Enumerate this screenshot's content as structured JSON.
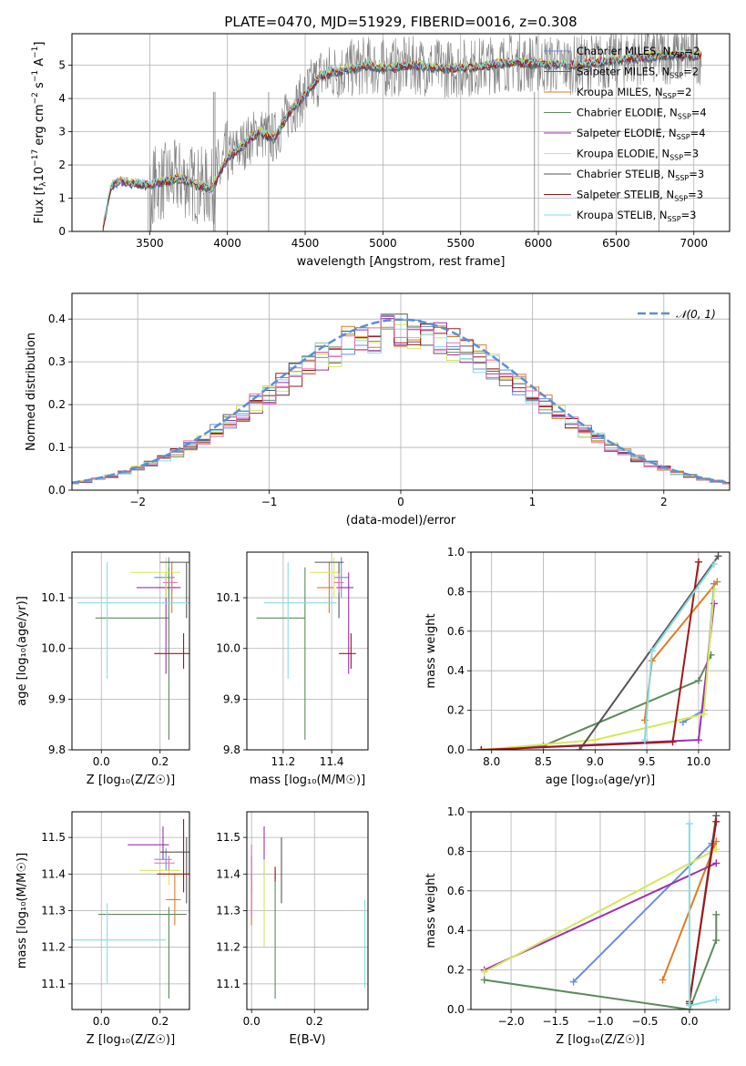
{
  "title": "PLATE=0470, MJD=51929, FIBERID=0016, z=0.308",
  "colors": {
    "Chabrier MILES": "#6a8fd6",
    "Salpeter MILES": "#2b6fb5",
    "Kroupa MILES": "#e07b24",
    "Chabrier ELODIE": "#5e8a5e",
    "Salpeter ELODIE": "#9b30b0",
    "Kroupa ELODIE": "#d6e85a",
    "Chabrier STELIB": "#555555",
    "Salpeter STELIB": "#a01818",
    "Kroupa STELIB": "#86dce0",
    "extra": "#e070b0",
    "data": "#808080",
    "normal": "#5b8fd6"
  },
  "chart_data": [
    {
      "id": "spectrum",
      "type": "line",
      "xlabel": "wavelength [Angstrom, rest frame]",
      "ylabel": "Flux [f",
      "xlim": [
        3000,
        7230
      ],
      "ylim": [
        0,
        5.95
      ],
      "xticks": [
        "3500",
        "4000",
        "4500",
        "5000",
        "5500",
        "6000",
        "6500",
        "7000"
      ],
      "yticks": [
        "0",
        "1",
        "2",
        "3",
        "4",
        "5"
      ],
      "legend": [
        {
          "name": "Chabrier MILES",
          "sub": "SSP",
          "suffix": "=2"
        },
        {
          "name": "Salpeter MILES",
          "sub": "SSP",
          "suffix": "=2"
        },
        {
          "name": "Kroupa MILES",
          "sub": "SSP",
          "suffix": "=2"
        },
        {
          "name": "Chabrier ELODIE",
          "sub": "SSP",
          "suffix": "=4"
        },
        {
          "name": "Salpeter ELODIE",
          "sub": "SSP",
          "suffix": "=4"
        },
        {
          "name": "Kroupa ELODIE",
          "sub": "SSP",
          "suffix": "=3"
        },
        {
          "name": "Chabrier STELIB",
          "sub": "SSP",
          "suffix": "=3"
        },
        {
          "name": "Salpeter STELIB",
          "sub": "SSP",
          "suffix": "=3"
        },
        {
          "name": "Kroupa STELIB",
          "sub": "SSP",
          "suffix": "=3"
        }
      ],
      "model_x": [
        3200,
        3250,
        3300,
        3400,
        3500,
        3600,
        3700,
        3800,
        3900,
        4000,
        4100,
        4200,
        4300,
        4400,
        4500,
        4600,
        4700,
        4800,
        4900,
        5000,
        5200,
        5400,
        5600,
        5800,
        6000,
        6200,
        6400,
        6600,
        6800,
        7000
      ],
      "model_y": [
        0.1,
        1.35,
        1.5,
        1.45,
        1.4,
        1.5,
        1.6,
        1.4,
        1.3,
        2.2,
        2.6,
        3.0,
        2.8,
        3.6,
        4.1,
        4.7,
        4.8,
        4.9,
        5.0,
        4.9,
        5.0,
        4.9,
        4.95,
        5.1,
        5.05,
        5.0,
        5.1,
        5.2,
        5.3,
        5.3
      ]
    },
    {
      "id": "residuals",
      "type": "histogram",
      "xlabel": "(data-model)/error",
      "ylabel": "Normed distribution",
      "xlim": [
        -2.5,
        2.5
      ],
      "ylim": [
        0,
        0.46
      ],
      "xticks": [
        "−2",
        "−1",
        "0",
        "1",
        "2"
      ],
      "yticks": [
        "0.0",
        "0.1",
        "0.2",
        "0.3",
        "0.4"
      ],
      "legend": "𝒩(0, 1)"
    },
    {
      "id": "age_vs_Z",
      "type": "scatter",
      "xlabel": "Z [log₁₀(Z/Z☉)]",
      "ylabel": "age  [log₁₀(age/yr)]",
      "xlim": [
        -0.1,
        0.3
      ],
      "ylim": [
        9.8,
        10.19
      ],
      "xticks": [
        "0.0",
        "0.2"
      ],
      "yticks": [
        "9.8",
        "9.9",
        "10.0",
        "10.1"
      ],
      "points": [
        {
          "s": "Chabrier MILES",
          "x": 0.23,
          "y": 10.14,
          "xe": [
            0.05,
            0.02
          ],
          "ye": [
            0.04,
            0.04
          ]
        },
        {
          "s": "Kroupa MILES",
          "x": 0.24,
          "y": 10.12,
          "xe": [
            0.05,
            0.02
          ],
          "ye": [
            0.05,
            0.05
          ]
        },
        {
          "s": "Chabrier ELODIE",
          "x": 0.23,
          "y": 10.06,
          "xe": [
            0.25,
            0.0
          ],
          "ye": [
            0.24,
            0.1
          ]
        },
        {
          "s": "Salpeter ELODIE",
          "x": 0.22,
          "y": 10.12,
          "xe": [
            0.1,
            0.05
          ],
          "ye": [
            0.17,
            0.03
          ]
        },
        {
          "s": "Kroupa ELODIE",
          "x": 0.22,
          "y": 10.15,
          "xe": [
            0.12,
            0.05
          ],
          "ye": [
            0.05,
            0.03
          ]
        },
        {
          "s": "Chabrier STELIB",
          "x": 0.29,
          "y": 10.17,
          "xe": [
            0.09,
            0.01
          ],
          "ye": [
            0.11,
            0.0
          ]
        },
        {
          "s": "Salpeter STELIB",
          "x": 0.28,
          "y": 9.99,
          "xe": [
            0.1,
            0.02
          ],
          "ye": [
            0.03,
            0.04
          ]
        },
        {
          "s": "Kroupa STELIB",
          "x": 0.02,
          "y": 10.09,
          "xe": [
            0.1,
            0.28
          ],
          "ye": [
            0.15,
            0.08
          ]
        },
        {
          "s": "extra",
          "x": 0.24,
          "y": 10.13,
          "xe": [
            0.03,
            0.02
          ],
          "ye": [
            0.02,
            0.02
          ]
        }
      ]
    },
    {
      "id": "age_vs_mass",
      "type": "scatter",
      "xlabel": "mass [log₁₀(M/M☉)]",
      "ylabel": "",
      "xlim": [
        11.05,
        11.55
      ],
      "ylim": [
        9.8,
        10.19
      ],
      "xticks": [
        "11.2",
        "11.4"
      ],
      "yticks": [
        "9.8",
        "9.9",
        "10.0",
        "10.1"
      ],
      "points": [
        {
          "s": "Chabrier MILES",
          "x": 11.44,
          "y": 10.14,
          "xe": [
            0.03,
            0.03
          ],
          "ye": [
            0.04,
            0.04
          ]
        },
        {
          "s": "Kroupa MILES",
          "x": 11.39,
          "y": 10.12,
          "xe": [
            0.05,
            0.02
          ],
          "ye": [
            0.05,
            0.05
          ]
        },
        {
          "s": "Chabrier ELODIE",
          "x": 11.29,
          "y": 10.06,
          "xe": [
            0.2,
            0.0
          ],
          "ye": [
            0.24,
            0.1
          ]
        },
        {
          "s": "Salpeter ELODIE",
          "x": 11.47,
          "y": 10.12,
          "xe": [
            0.05,
            0.02
          ],
          "ye": [
            0.17,
            0.03
          ]
        },
        {
          "s": "Kroupa ELODIE",
          "x": 11.41,
          "y": 10.15,
          "xe": [
            0.1,
            0.03
          ],
          "ye": [
            0.05,
            0.03
          ]
        },
        {
          "s": "Chabrier STELIB",
          "x": 11.43,
          "y": 10.17,
          "xe": [
            0.1,
            0.02
          ],
          "ye": [
            0.11,
            0.0
          ]
        },
        {
          "s": "Salpeter STELIB",
          "x": 11.48,
          "y": 9.99,
          "xe": [
            0.05,
            0.02
          ],
          "ye": [
            0.03,
            0.04
          ]
        },
        {
          "s": "Kroupa STELIB",
          "x": 11.22,
          "y": 10.09,
          "xe": [
            0.1,
            0.2
          ],
          "ye": [
            0.15,
            0.08
          ]
        },
        {
          "s": "extra",
          "x": 11.43,
          "y": 10.13,
          "xe": [
            0.02,
            0.02
          ],
          "ye": [
            0.02,
            0.02
          ]
        }
      ]
    },
    {
      "id": "weight_vs_age",
      "type": "line",
      "xlabel": "age  [log₁₀(age/yr)]",
      "ylabel": "mass weight",
      "xlim": [
        7.8,
        10.3
      ],
      "ylim": [
        0,
        1.0
      ],
      "xticks": [
        "8.0",
        "8.5",
        "9.0",
        "9.5",
        "10.0"
      ],
      "yticks": [
        "0.0",
        "0.2",
        "0.4",
        "0.6",
        "0.8",
        "1.0"
      ],
      "series": [
        {
          "s": "Chabrier MILES",
          "x": [
            9.85,
            10.05,
            10.15
          ],
          "y": [
            0.14,
            0.2,
            0.84
          ]
        },
        {
          "s": "Kroupa MILES",
          "x": [
            9.48,
            9.55,
            10.18
          ],
          "y": [
            0.15,
            0.45,
            0.85
          ]
        },
        {
          "s": "Chabrier ELODIE",
          "x": [
            7.9,
            8.5,
            10.0,
            10.12
          ],
          "y": [
            0.0,
            0.02,
            0.35,
            0.48
          ]
        },
        {
          "s": "Salpeter ELODIE",
          "x": [
            7.9,
            10.0,
            10.15
          ],
          "y": [
            0.0,
            0.05,
            0.74
          ]
        },
        {
          "s": "Kroupa ELODIE",
          "x": [
            7.9,
            9.0,
            10.05,
            10.15
          ],
          "y": [
            0.0,
            0.05,
            0.18,
            0.81
          ]
        },
        {
          "s": "Chabrier STELIB",
          "x": [
            8.85,
            10.19
          ],
          "y": [
            0.0,
            0.98
          ]
        },
        {
          "s": "Salpeter STELIB",
          "x": [
            7.9,
            9.75,
            10.0
          ],
          "y": [
            0.0,
            0.04,
            0.95
          ]
        },
        {
          "s": "Kroupa STELIB",
          "x": [
            9.48,
            9.55,
            10.15
          ],
          "y": [
            0.05,
            0.5,
            0.94
          ]
        }
      ]
    },
    {
      "id": "mass_vs_Z",
      "type": "scatter",
      "xlabel": "Z [log₁₀(Z/Z☉)]",
      "ylabel": "mass [log₁₀(M/M☉)]",
      "xlim": [
        -0.1,
        0.3
      ],
      "ylim": [
        11.03,
        11.57
      ],
      "xticks": [
        "0.0",
        "0.2"
      ],
      "yticks": [
        "11.1",
        "11.2",
        "11.3",
        "11.4",
        "11.5"
      ],
      "points": [
        {
          "s": "Chabrier MILES",
          "x": 0.22,
          "y": 11.44,
          "xe": [
            0.04,
            0.02
          ],
          "ye": [
            0.03,
            0.03
          ]
        },
        {
          "s": "Kroupa MILES",
          "x": 0.25,
          "y": 11.33,
          "xe": [
            0.03,
            0.02
          ],
          "ye": [
            0.07,
            0.07
          ]
        },
        {
          "s": "Chabrier ELODIE",
          "x": 0.23,
          "y": 11.29,
          "xe": [
            0.24,
            0.06
          ],
          "ye": [
            0.23,
            0.02
          ]
        },
        {
          "s": "Salpeter ELODIE",
          "x": 0.21,
          "y": 11.48,
          "xe": [
            0.12,
            0.02
          ],
          "ye": [
            0.04,
            0.05
          ]
        },
        {
          "s": "Kroupa ELODIE",
          "x": 0.23,
          "y": 11.41,
          "xe": [
            0.1,
            0.04
          ],
          "ye": [
            0.04,
            0.03
          ]
        },
        {
          "s": "Chabrier STELIB",
          "x": 0.29,
          "y": 11.46,
          "xe": [
            0.09,
            0.01
          ],
          "ye": [
            0.14,
            0.04
          ]
        },
        {
          "s": "Salpeter STELIB",
          "x": 0.28,
          "y": 11.4,
          "xe": [
            0.09,
            0.02
          ],
          "ye": [
            0.05,
            0.15
          ]
        },
        {
          "s": "Kroupa STELIB",
          "x": 0.02,
          "y": 11.22,
          "xe": [
            0.12,
            0.2
          ],
          "ye": [
            0.12,
            0.1
          ]
        },
        {
          "s": "extra",
          "x": 0.23,
          "y": 11.43,
          "xe": [
            0.05,
            0.02
          ],
          "ye": [
            0.02,
            0.02
          ]
        }
      ]
    },
    {
      "id": "mass_vs_EBV",
      "type": "scatter",
      "xlabel": "E(B-V)",
      "ylabel": "",
      "xlim": [
        -0.015,
        0.37
      ],
      "ylim": [
        11.03,
        11.57
      ],
      "xticks": [
        "0.0",
        "0.2"
      ],
      "yticks": [
        "11.1",
        "11.2",
        "11.3",
        "11.4",
        "11.5"
      ],
      "points": [
        {
          "s": "Chabrier MILES",
          "x": 0.0,
          "y": 11.4,
          "xe": [
            0.0,
            0.0
          ],
          "ye": [
            0.05,
            0.05
          ]
        },
        {
          "s": "Kroupa MILES",
          "x": 0.0,
          "y": 11.34,
          "xe": [
            0.0,
            0.0
          ],
          "ye": [
            0.08,
            0.06
          ]
        },
        {
          "s": "Chabrier ELODIE",
          "x": 0.075,
          "y": 11.29,
          "xe": [
            0.0,
            0.0
          ],
          "ye": [
            0.23,
            0.12
          ]
        },
        {
          "s": "Salpeter ELODIE",
          "x": 0.04,
          "y": 11.45,
          "xe": [
            0.0,
            0.0
          ],
          "ye": [
            0.05,
            0.08
          ]
        },
        {
          "s": "Kroupa ELODIE",
          "x": 0.04,
          "y": 11.32,
          "xe": [
            0.0,
            0.0
          ],
          "ye": [
            0.12,
            0.12
          ]
        },
        {
          "s": "Chabrier STELIB",
          "x": 0.095,
          "y": 11.4,
          "xe": [
            0.0,
            0.0
          ],
          "ye": [
            0.08,
            0.1
          ]
        },
        {
          "s": "Salpeter STELIB",
          "x": 0.075,
          "y": 11.4,
          "xe": [
            0.0,
            0.0
          ],
          "ye": [
            0.02,
            0.02
          ]
        },
        {
          "s": "Kroupa STELIB",
          "x": 0.36,
          "y": 11.21,
          "xe": [
            0.0,
            0.0
          ],
          "ye": [
            0.12,
            0.12
          ]
        },
        {
          "s": "extra",
          "x": 0.0,
          "y": 11.38,
          "xe": [
            0.0,
            0.0
          ],
          "ye": [
            0.1,
            0.1
          ]
        }
      ]
    },
    {
      "id": "weight_vs_Z",
      "type": "line",
      "xlabel": "Z [log₁₀(Z/Z☉)]",
      "ylabel": "mass weight",
      "xlim": [
        -2.45,
        0.45
      ],
      "ylim": [
        0,
        1.0
      ],
      "xticks": [
        "−2.0",
        "−1.5",
        "−1.0",
        "−0.5",
        "0.0"
      ],
      "yticks": [
        "0.0",
        "0.2",
        "0.4",
        "0.6",
        "0.8",
        "1.0"
      ],
      "series": [
        {
          "s": "Chabrier MILES",
          "x": [
            -1.3,
            0.25
          ],
          "y": [
            0.14,
            0.84
          ]
        },
        {
          "s": "Kroupa MILES",
          "x": [
            -0.3,
            0.3
          ],
          "y": [
            0.15,
            0.85
          ]
        },
        {
          "s": "Chabrier ELODIE",
          "x": [
            -2.3,
            0.0,
            0.3,
            0.3
          ],
          "y": [
            0.15,
            0.0,
            0.35,
            0.48
          ]
        },
        {
          "s": "Salpeter ELODIE",
          "x": [
            -2.3,
            0.3
          ],
          "y": [
            0.2,
            0.74
          ]
        },
        {
          "s": "Kroupa ELODIE",
          "x": [
            -2.3,
            0.3
          ],
          "y": [
            0.19,
            0.81
          ]
        },
        {
          "s": "Chabrier STELIB",
          "x": [
            0.0,
            0.3
          ],
          "y": [
            0.03,
            0.98
          ]
        },
        {
          "s": "Salpeter STELIB",
          "x": [
            0.0,
            0.3
          ],
          "y": [
            0.04,
            0.95
          ]
        },
        {
          "s": "Kroupa STELIB",
          "x": [
            0.0,
            0.0,
            0.3
          ],
          "y": [
            0.94,
            0.02,
            0.05
          ]
        }
      ]
    }
  ]
}
